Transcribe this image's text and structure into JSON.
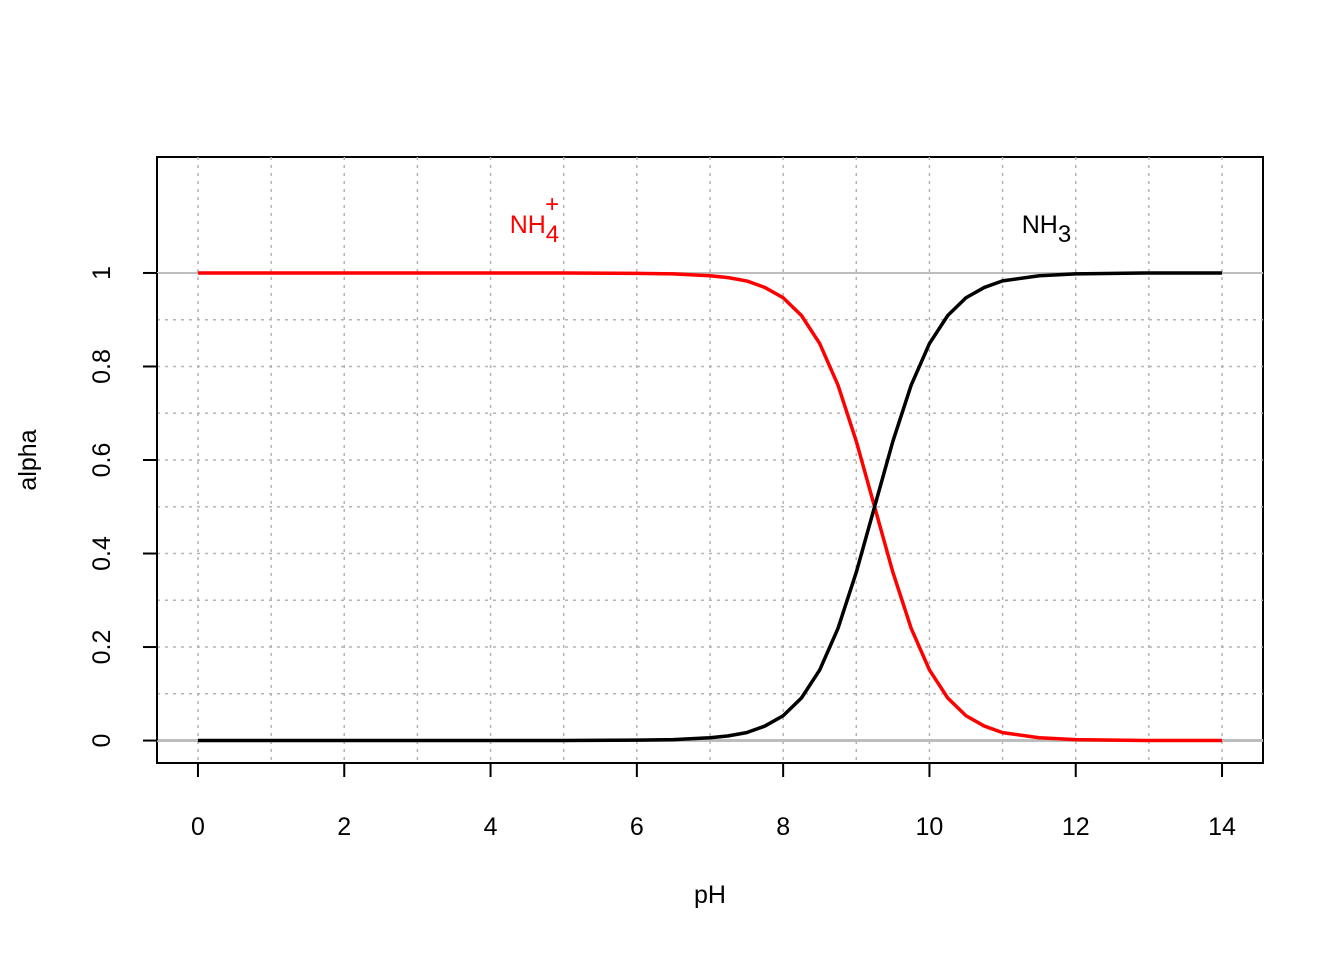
{
  "chart_data": {
    "type": "line",
    "x_label": "pH",
    "y_label": "alpha",
    "x": [
      0,
      1,
      2,
      3,
      4,
      5,
      6,
      6.5,
      7,
      7.25,
      7.5,
      7.75,
      8,
      8.25,
      8.5,
      8.75,
      9,
      9.25,
      9.5,
      9.75,
      10,
      10.25,
      10.5,
      10.75,
      11,
      11.5,
      12,
      13,
      14
    ],
    "series": [
      {
        "name": {
          "text": "NH",
          "sub": "4",
          "sup": "+"
        },
        "color": "#ff0000",
        "values": [
          1,
          1,
          1,
          1,
          1,
          1,
          0.999,
          0.998,
          0.994,
          0.99,
          0.983,
          0.969,
          0.947,
          0.909,
          0.849,
          0.76,
          0.64,
          0.5,
          0.36,
          0.24,
          0.151,
          0.091,
          0.053,
          0.031,
          0.017,
          0.006,
          0.002,
          0,
          0
        ]
      },
      {
        "name": {
          "text": "NH",
          "sub": "3"
        },
        "color": "#000000",
        "values": [
          0,
          0,
          0,
          0,
          0,
          0,
          0.001,
          0.002,
          0.006,
          0.01,
          0.017,
          0.031,
          0.053,
          0.091,
          0.151,
          0.24,
          0.36,
          0.5,
          0.64,
          0.76,
          0.849,
          0.909,
          0.947,
          0.969,
          0.983,
          0.994,
          0.998,
          1,
          1
        ]
      }
    ],
    "xlim": [
      -0.56,
      14.56
    ],
    "ylim": [
      -0.048,
      1.248
    ],
    "xticks": [
      0,
      2,
      4,
      6,
      8,
      10,
      12,
      14
    ],
    "yticks": [
      0,
      0.2,
      0.4,
      0.6,
      0.8,
      1
    ],
    "xgrid": [
      0,
      1,
      2,
      3,
      4,
      5,
      6,
      7,
      8,
      9,
      10,
      11,
      12,
      13,
      14
    ],
    "ygrid": [
      0,
      0.1,
      0.2,
      0.3,
      0.4,
      0.5,
      0.6,
      0.7,
      0.8,
      0.9,
      1
    ],
    "hlines": [
      0,
      1
    ],
    "grid": true
  }
}
